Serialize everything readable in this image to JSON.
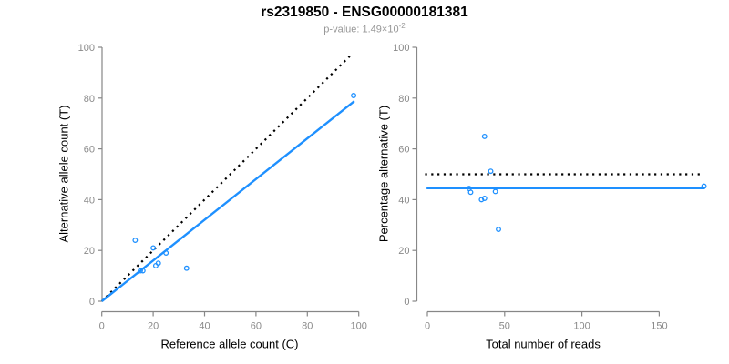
{
  "title": "rs2319850 - ENSG00000181381",
  "subtitle": {
    "base": "p-value: 1.49×10",
    "exponent": "-2"
  },
  "colors": {
    "accent_blue": "#1E90FF",
    "dotted_line_black": "#000000",
    "axis_gray": "#878787",
    "tick_label_gray": "#8a8a8a",
    "title_black": "#000000",
    "subtitle_gray": "#979797"
  },
  "chart_data": [
    {
      "type": "scatter",
      "panel": "left",
      "xlabel": "Reference allele count (C)",
      "ylabel": "Alternative allele count (T)",
      "xlim": [
        0,
        104
      ],
      "ylim": [
        0,
        101
      ],
      "xticks": [
        0,
        20,
        40,
        60,
        80,
        100
      ],
      "yticks": [
        0,
        20,
        40,
        60,
        80,
        100
      ],
      "grid": false,
      "legend": null,
      "points": [
        [
          13,
          24
        ],
        [
          20,
          21
        ],
        [
          15,
          12
        ],
        [
          16,
          12
        ],
        [
          25,
          19
        ],
        [
          21,
          14
        ],
        [
          22,
          15
        ],
        [
          33,
          13
        ],
        [
          98,
          81
        ]
      ],
      "lines": [
        {
          "name": "identity-line",
          "style": "dotted",
          "color": "#000000",
          "x1": 0,
          "y1": 0,
          "x2": 96.5,
          "y2": 96.5
        },
        {
          "name": "fit-line",
          "style": "solid",
          "color": "#1E90FF",
          "x1": 0,
          "y1": 0,
          "x2": 98.3,
          "y2": 78.8
        }
      ]
    },
    {
      "type": "scatter",
      "panel": "right",
      "xlabel": "Total number of reads",
      "ylabel": "Percentage alternative (T)",
      "xlim": [
        0,
        186
      ],
      "ylim": [
        0,
        101
      ],
      "xticks": [
        0,
        50,
        100,
        150
      ],
      "yticks": [
        0,
        20,
        40,
        60,
        80,
        100
      ],
      "grid": false,
      "legend": null,
      "points": [
        [
          37,
          64.9
        ],
        [
          41,
          51.2
        ],
        [
          27,
          44.4
        ],
        [
          28,
          42.9
        ],
        [
          44,
          43.2
        ],
        [
          35,
          40.0
        ],
        [
          37,
          40.5
        ],
        [
          46,
          28.3
        ],
        [
          179,
          45.3
        ]
      ],
      "lines": [
        {
          "name": "fifty-percent-line",
          "style": "dotted",
          "color": "#000000",
          "x1": -1.5,
          "y1": 50,
          "x2": 177,
          "y2": 50
        },
        {
          "name": "mean-percentage-line",
          "style": "solid",
          "color": "#1E90FF",
          "x1": -0.5,
          "y1": 44.5,
          "x2": 179.5,
          "y2": 44.5
        }
      ]
    }
  ]
}
